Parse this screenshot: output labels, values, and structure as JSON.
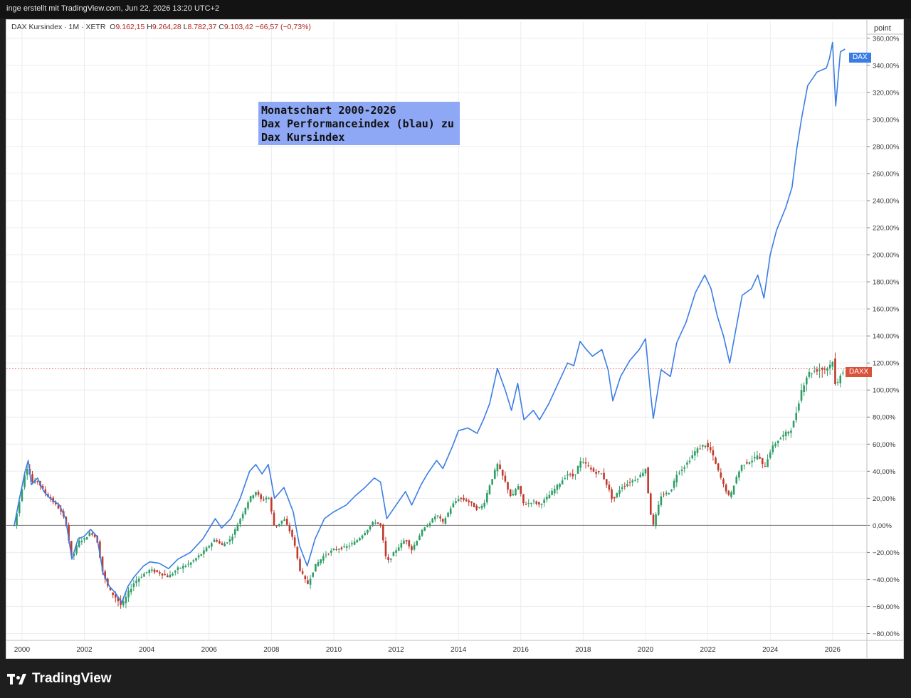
{
  "header": {
    "source_line": "inge erstellt mit TradingView.com, Jun 22, 2026 13:20 UTC+2"
  },
  "legend": {
    "symbol": "DAX Kursindex · 1M · XETR",
    "open_label": "O",
    "open": "9.162,15",
    "high_label": "H",
    "high": "9.264,28",
    "low_label": "L",
    "low": "8.782,37",
    "close_label": "C",
    "close": "9.103,42",
    "change": "−66,57 (−0,73%)"
  },
  "annotation": {
    "lines": [
      "Monatschart 2000-2026",
      "Dax Performanceindex (blau) zu",
      "Dax Kursindex"
    ]
  },
  "axis": {
    "unit_label": "point"
  },
  "brand": {
    "name": "TradingView"
  },
  "colors": {
    "blue": "#3a7de6",
    "up": "#2e9e67",
    "down": "#c0392b",
    "zero_line": "#777777",
    "price_line": "#e05050"
  },
  "chart_data": {
    "type": "line",
    "xlim": [
      1999.5,
      2027.1
    ],
    "ylim": [
      -85,
      362
    ],
    "x_ticks": [
      2000,
      2002,
      2004,
      2006,
      2008,
      2010,
      2012,
      2014,
      2016,
      2018,
      2020,
      2022,
      2024,
      2026
    ],
    "x_tick_labels": [
      "2000",
      "2002",
      "2004",
      "2006",
      "2008",
      "2010",
      "2012",
      "2014",
      "2016",
      "2018",
      "2020",
      "2022",
      "2024",
      "2026"
    ],
    "y_ticks": [
      -80,
      -60,
      -40,
      -20,
      0,
      20,
      40,
      60,
      80,
      100,
      120,
      140,
      160,
      180,
      200,
      220,
      240,
      260,
      280,
      300,
      320,
      340,
      360
    ],
    "y_tick_labels": [
      "−80,00%",
      "−60,00%",
      "−40,00%",
      "−20,00%",
      "0,00%",
      "20,00%",
      "40,00%",
      "60,00%",
      "80,00%",
      "100,00%",
      "120,00%",
      "140,00%",
      "160,00%",
      "180,00%",
      "200,00%",
      "220,00%",
      "240,00%",
      "260,00%",
      "280,00%",
      "300,00%",
      "320,00%",
      "340,00%",
      "360,00%"
    ],
    "current_price_level": 116,
    "series": [
      {
        "name": "DAX",
        "kind": "line",
        "color": "#3a7de6",
        "points": [
          [
            1999.75,
            0
          ],
          [
            1999.92,
            20
          ],
          [
            2000.1,
            40
          ],
          [
            2000.2,
            48
          ],
          [
            2000.3,
            30
          ],
          [
            2000.5,
            35
          ],
          [
            2000.7,
            25
          ],
          [
            2000.9,
            20
          ],
          [
            2001.2,
            15
          ],
          [
            2001.4,
            5
          ],
          [
            2001.6,
            -25
          ],
          [
            2001.8,
            -10
          ],
          [
            2002.0,
            -8
          ],
          [
            2002.2,
            -3
          ],
          [
            2002.4,
            -8
          ],
          [
            2002.6,
            -35
          ],
          [
            2002.8,
            -45
          ],
          [
            2003.0,
            -50
          ],
          [
            2003.2,
            -57
          ],
          [
            2003.4,
            -45
          ],
          [
            2003.6,
            -38
          ],
          [
            2003.9,
            -30
          ],
          [
            2004.1,
            -27
          ],
          [
            2004.4,
            -28
          ],
          [
            2004.7,
            -32
          ],
          [
            2005.0,
            -25
          ],
          [
            2005.4,
            -20
          ],
          [
            2005.8,
            -10
          ],
          [
            2006.2,
            5
          ],
          [
            2006.4,
            -2
          ],
          [
            2006.7,
            5
          ],
          [
            2007.0,
            20
          ],
          [
            2007.3,
            40
          ],
          [
            2007.5,
            45
          ],
          [
            2007.7,
            38
          ],
          [
            2007.9,
            45
          ],
          [
            2008.1,
            20
          ],
          [
            2008.4,
            28
          ],
          [
            2008.7,
            10
          ],
          [
            2008.9,
            -15
          ],
          [
            2009.15,
            -30
          ],
          [
            2009.4,
            -10
          ],
          [
            2009.7,
            5
          ],
          [
            2010.0,
            10
          ],
          [
            2010.4,
            15
          ],
          [
            2010.7,
            22
          ],
          [
            2011.0,
            28
          ],
          [
            2011.3,
            35
          ],
          [
            2011.5,
            32
          ],
          [
            2011.7,
            5
          ],
          [
            2012.0,
            15
          ],
          [
            2012.3,
            25
          ],
          [
            2012.5,
            15
          ],
          [
            2012.8,
            30
          ],
          [
            2013.0,
            38
          ],
          [
            2013.3,
            48
          ],
          [
            2013.5,
            42
          ],
          [
            2013.8,
            58
          ],
          [
            2014.0,
            70
          ],
          [
            2014.3,
            72
          ],
          [
            2014.6,
            68
          ],
          [
            2014.8,
            78
          ],
          [
            2015.0,
            90
          ],
          [
            2015.25,
            116
          ],
          [
            2015.5,
            100
          ],
          [
            2015.7,
            85
          ],
          [
            2015.9,
            105
          ],
          [
            2016.1,
            78
          ],
          [
            2016.4,
            85
          ],
          [
            2016.6,
            78
          ],
          [
            2016.9,
            90
          ],
          [
            2017.2,
            105
          ],
          [
            2017.5,
            120
          ],
          [
            2017.7,
            118
          ],
          [
            2017.9,
            136
          ],
          [
            2018.1,
            130
          ],
          [
            2018.3,
            125
          ],
          [
            2018.6,
            130
          ],
          [
            2018.8,
            115
          ],
          [
            2018.95,
            92
          ],
          [
            2019.2,
            110
          ],
          [
            2019.5,
            122
          ],
          [
            2019.8,
            130
          ],
          [
            2020.0,
            138
          ],
          [
            2020.15,
            100
          ],
          [
            2020.25,
            79
          ],
          [
            2020.5,
            115
          ],
          [
            2020.8,
            110
          ],
          [
            2021.0,
            135
          ],
          [
            2021.3,
            150
          ],
          [
            2021.6,
            172
          ],
          [
            2021.9,
            185
          ],
          [
            2022.1,
            175
          ],
          [
            2022.3,
            155
          ],
          [
            2022.5,
            140
          ],
          [
            2022.7,
            120
          ],
          [
            2022.9,
            145
          ],
          [
            2023.1,
            170
          ],
          [
            2023.4,
            175
          ],
          [
            2023.6,
            185
          ],
          [
            2023.8,
            168
          ],
          [
            2024.0,
            200
          ],
          [
            2024.2,
            218
          ],
          [
            2024.5,
            235
          ],
          [
            2024.7,
            250
          ],
          [
            2024.85,
            278
          ],
          [
            2025.0,
            300
          ],
          [
            2025.2,
            325
          ],
          [
            2025.5,
            335
          ],
          [
            2025.8,
            338
          ],
          [
            2025.9,
            345
          ],
          [
            2026.0,
            357
          ],
          [
            2026.1,
            310
          ],
          [
            2026.25,
            350
          ],
          [
            2026.4,
            352
          ]
        ]
      },
      {
        "name": "DAXX",
        "kind": "candlestick",
        "up_color": "#2e9e67",
        "down_color": "#c0392b",
        "points": [
          [
            1999.75,
            0
          ],
          [
            1999.92,
            18
          ],
          [
            2000.1,
            40
          ],
          [
            2000.2,
            44
          ],
          [
            2000.3,
            32
          ],
          [
            2000.5,
            33
          ],
          [
            2000.7,
            25
          ],
          [
            2000.9,
            20
          ],
          [
            2001.2,
            12
          ],
          [
            2001.4,
            3
          ],
          [
            2001.6,
            -25
          ],
          [
            2001.8,
            -12
          ],
          [
            2002.0,
            -10
          ],
          [
            2002.2,
            -5
          ],
          [
            2002.4,
            -10
          ],
          [
            2002.6,
            -36
          ],
          [
            2002.8,
            -48
          ],
          [
            2003.0,
            -53
          ],
          [
            2003.2,
            -60
          ],
          [
            2003.4,
            -50
          ],
          [
            2003.6,
            -42
          ],
          [
            2003.9,
            -36
          ],
          [
            2004.1,
            -33
          ],
          [
            2004.4,
            -35
          ],
          [
            2004.7,
            -38
          ],
          [
            2005.0,
            -32
          ],
          [
            2005.4,
            -28
          ],
          [
            2005.8,
            -20
          ],
          [
            2006.2,
            -10
          ],
          [
            2006.4,
            -15
          ],
          [
            2006.7,
            -10
          ],
          [
            2007.0,
            5
          ],
          [
            2007.3,
            20
          ],
          [
            2007.5,
            25
          ],
          [
            2007.7,
            18
          ],
          [
            2007.9,
            22
          ],
          [
            2008.1,
            -2
          ],
          [
            2008.4,
            5
          ],
          [
            2008.7,
            -10
          ],
          [
            2008.9,
            -32
          ],
          [
            2009.15,
            -44
          ],
          [
            2009.4,
            -30
          ],
          [
            2009.7,
            -22
          ],
          [
            2010.0,
            -18
          ],
          [
            2010.4,
            -16
          ],
          [
            2010.7,
            -12
          ],
          [
            2011.0,
            -5
          ],
          [
            2011.3,
            3
          ],
          [
            2011.5,
            0
          ],
          [
            2011.7,
            -28
          ],
          [
            2012.0,
            -18
          ],
          [
            2012.3,
            -10
          ],
          [
            2012.5,
            -18
          ],
          [
            2012.8,
            -5
          ],
          [
            2013.0,
            0
          ],
          [
            2013.3,
            8
          ],
          [
            2013.5,
            2
          ],
          [
            2013.8,
            15
          ],
          [
            2014.0,
            20
          ],
          [
            2014.3,
            18
          ],
          [
            2014.6,
            12
          ],
          [
            2014.8,
            15
          ],
          [
            2015.0,
            30
          ],
          [
            2015.25,
            45
          ],
          [
            2015.5,
            32
          ],
          [
            2015.7,
            20
          ],
          [
            2015.9,
            30
          ],
          [
            2016.1,
            15
          ],
          [
            2016.4,
            18
          ],
          [
            2016.6,
            15
          ],
          [
            2016.9,
            22
          ],
          [
            2017.2,
            30
          ],
          [
            2017.5,
            38
          ],
          [
            2017.7,
            36
          ],
          [
            2017.9,
            47
          ],
          [
            2018.1,
            45
          ],
          [
            2018.3,
            40
          ],
          [
            2018.6,
            38
          ],
          [
            2018.8,
            28
          ],
          [
            2018.95,
            18
          ],
          [
            2019.2,
            28
          ],
          [
            2019.5,
            32
          ],
          [
            2019.8,
            36
          ],
          [
            2020.0,
            42
          ],
          [
            2020.15,
            10
          ],
          [
            2020.25,
            0
          ],
          [
            2020.5,
            22
          ],
          [
            2020.8,
            25
          ],
          [
            2021.0,
            38
          ],
          [
            2021.3,
            45
          ],
          [
            2021.6,
            55
          ],
          [
            2021.9,
            60
          ],
          [
            2022.1,
            55
          ],
          [
            2022.3,
            42
          ],
          [
            2022.5,
            30
          ],
          [
            2022.7,
            20
          ],
          [
            2022.9,
            35
          ],
          [
            2023.1,
            45
          ],
          [
            2023.4,
            48
          ],
          [
            2023.6,
            52
          ],
          [
            2023.8,
            42
          ],
          [
            2024.0,
            55
          ],
          [
            2024.2,
            62
          ],
          [
            2024.5,
            68
          ],
          [
            2024.7,
            72
          ],
          [
            2024.85,
            85
          ],
          [
            2025.0,
            100
          ],
          [
            2025.2,
            112
          ],
          [
            2025.5,
            115
          ],
          [
            2025.8,
            116
          ],
          [
            2025.9,
            118
          ],
          [
            2026.0,
            122
          ],
          [
            2026.1,
            100
          ],
          [
            2026.25,
            112
          ],
          [
            2026.4,
            116
          ]
        ]
      }
    ]
  }
}
